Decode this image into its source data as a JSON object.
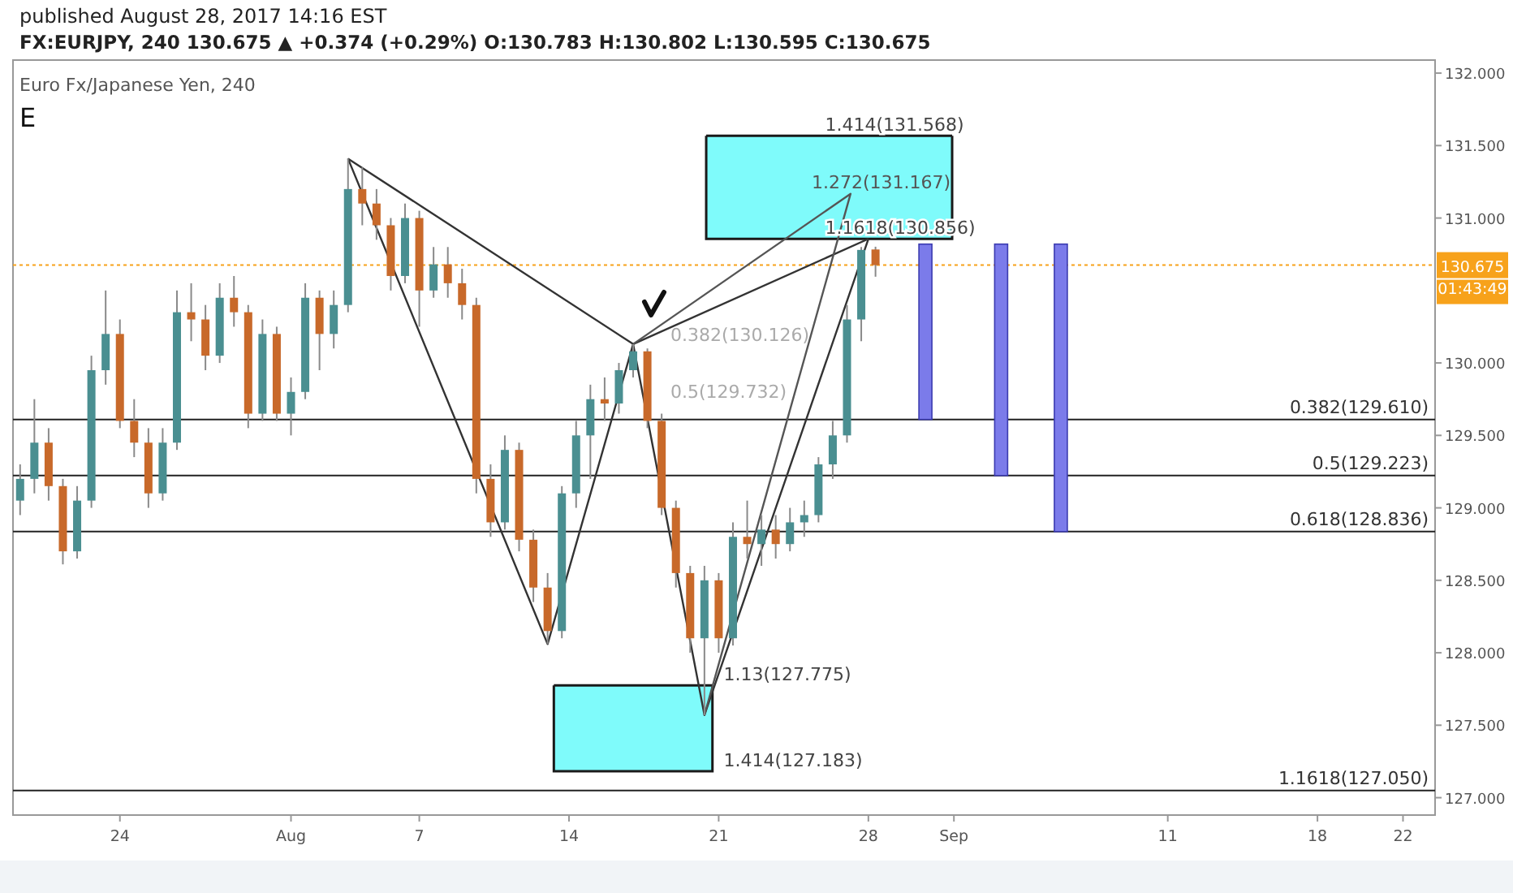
{
  "chart_data": {
    "type": "candlestick",
    "title": "FX:EURJPY, 240 130.675 ▲ +0.374 (+0.29%) O:130.783 H:130.802 L:130.595 C:130.675",
    "subtitle": "Euro Fx/Japanese Yen, 240",
    "annotations": [
      "published August 28, 2017 14:16 EST",
      "E",
      "01:43:49",
      "0.382(130.126)",
      "0.5(129.732)",
      "1.272(131.167)",
      {
        "text": "1.13(127.775)",
        "x": "2017-08-21T00:00",
        "y": 127.775
      },
      {
        "text": "1.414(127.183)",
        "x": "2017-08-21T00:00",
        "y": 127.183
      },
      {
        "text": "1.414(131.568)",
        "x": "2017-08-25T18:00",
        "y": 131.568
      },
      {
        "text": "1.1618(130.856)",
        "x": "2017-08-25T18:00",
        "y": 130.856
      }
    ],
    "x": [
      "2017-07-19T08:00",
      "2017-07-20T00:00",
      "2017-07-20T16:00",
      "2017-07-21T08:00",
      "2017-07-22T00:00",
      "2017-07-22T16:00",
      "2017-07-23T08:00",
      "2017-07-24T00:00",
      "2017-07-24T16:00",
      "2017-07-25T08:00",
      "2017-07-26T00:00",
      "2017-07-26T16:00",
      "2017-07-27T08:00",
      "2017-07-28T00:00",
      "2017-07-28T16:00",
      "2017-07-29T08:00",
      "2017-07-30T00:00",
      "2017-07-30T16:00",
      "2017-07-31T08:00",
      "2017-08-01T00:00",
      "2017-08-01T16:00",
      "2017-08-02T08:00",
      "2017-08-03T00:00",
      "2017-08-03T16:00",
      "2017-08-04T08:00",
      "2017-08-05T00:00",
      "2017-08-05T16:00",
      "2017-08-06T08:00",
      "2017-08-07T00:00",
      "2017-08-07T16:00",
      "2017-08-08T08:00",
      "2017-08-09T00:00",
      "2017-08-09T16:00",
      "2017-08-10T08:00",
      "2017-08-11T00:00",
      "2017-08-11T16:00",
      "2017-08-12T08:00",
      "2017-08-13T00:00",
      "2017-08-13T16:00",
      "2017-08-14T08:00",
      "2017-08-15T00:00",
      "2017-08-15T16:00",
      "2017-08-16T08:00",
      "2017-08-17T00:00",
      "2017-08-17T16:00",
      "2017-08-18T08:00",
      "2017-08-19T00:00",
      "2017-08-19T16:00",
      "2017-08-20T08:00",
      "2017-08-21T00:00",
      "2017-08-21T16:00",
      "2017-08-22T08:00",
      "2017-08-23T00:00",
      "2017-08-23T16:00",
      "2017-08-24T08:00",
      "2017-08-25T00:00",
      "2017-08-25T16:00",
      "2017-08-26T08:00",
      "2017-08-27T00:00",
      "2017-08-27T16:00",
      "2017-08-28T08:00"
    ],
    "ohlc": [
      [
        129.05,
        129.3,
        128.95,
        129.2
      ],
      [
        129.2,
        129.75,
        129.1,
        129.45
      ],
      [
        129.45,
        129.55,
        129.05,
        129.15
      ],
      [
        129.15,
        129.2,
        128.61,
        128.7
      ],
      [
        128.7,
        129.15,
        128.65,
        129.05
      ],
      [
        129.05,
        130.05,
        129.0,
        129.95
      ],
      [
        129.95,
        130.5,
        129.85,
        130.2
      ],
      [
        130.2,
        130.3,
        129.55,
        129.6
      ],
      [
        129.6,
        129.75,
        129.35,
        129.45
      ],
      [
        129.45,
        129.55,
        129.0,
        129.1
      ],
      [
        129.1,
        129.55,
        129.05,
        129.45
      ],
      [
        129.45,
        130.5,
        129.4,
        130.35
      ],
      [
        130.35,
        130.55,
        130.15,
        130.3
      ],
      [
        130.3,
        130.4,
        129.95,
        130.05
      ],
      [
        130.05,
        130.55,
        130.0,
        130.45
      ],
      [
        130.45,
        130.6,
        130.25,
        130.35
      ],
      [
        130.35,
        130.4,
        129.55,
        129.65
      ],
      [
        129.65,
        130.3,
        129.6,
        130.2
      ],
      [
        130.2,
        130.25,
        129.6,
        129.65
      ],
      [
        129.65,
        129.9,
        129.5,
        129.8
      ],
      [
        129.8,
        130.55,
        129.75,
        130.45
      ],
      [
        130.45,
        130.5,
        129.95,
        130.2
      ],
      [
        130.2,
        130.5,
        130.1,
        130.4
      ],
      [
        130.4,
        131.41,
        130.35,
        131.2
      ],
      [
        131.2,
        131.35,
        130.95,
        131.1
      ],
      [
        131.1,
        131.2,
        130.85,
        130.95
      ],
      [
        130.95,
        131.0,
        130.5,
        130.6
      ],
      [
        130.6,
        131.1,
        130.55,
        131.0
      ],
      [
        131.0,
        131.05,
        130.25,
        130.5
      ],
      [
        130.5,
        130.8,
        130.45,
        130.68
      ],
      [
        130.68,
        130.8,
        130.45,
        130.55
      ],
      [
        130.55,
        130.65,
        130.3,
        130.4
      ],
      [
        130.4,
        130.45,
        129.1,
        129.2
      ],
      [
        129.2,
        129.3,
        128.8,
        128.9
      ],
      [
        128.9,
        129.5,
        128.85,
        129.4
      ],
      [
        129.4,
        129.45,
        128.7,
        128.78
      ],
      [
        128.78,
        128.85,
        128.35,
        128.45
      ],
      [
        128.45,
        128.55,
        128.06,
        128.15
      ],
      [
        128.15,
        129.15,
        128.1,
        129.1
      ],
      [
        129.1,
        129.6,
        129.0,
        129.5
      ],
      [
        129.5,
        129.85,
        129.2,
        129.75
      ],
      [
        129.75,
        129.9,
        129.6,
        129.72
      ],
      [
        129.72,
        130.0,
        129.65,
        129.95
      ],
      [
        129.95,
        130.13,
        129.9,
        130.08
      ],
      [
        130.08,
        130.1,
        129.55,
        129.6
      ],
      [
        129.6,
        129.65,
        128.95,
        129.0
      ],
      [
        129.0,
        129.05,
        128.45,
        128.55
      ],
      [
        128.55,
        128.6,
        128.0,
        128.1
      ],
      [
        128.1,
        128.6,
        127.57,
        128.5
      ],
      [
        128.5,
        128.55,
        128.0,
        128.1
      ],
      [
        128.1,
        128.9,
        128.05,
        128.8
      ],
      [
        128.8,
        129.05,
        128.65,
        128.75
      ],
      [
        128.75,
        128.95,
        128.6,
        128.85
      ],
      [
        128.85,
        128.95,
        128.65,
        128.75
      ],
      [
        128.75,
        129.0,
        128.7,
        128.9
      ],
      [
        128.9,
        129.05,
        128.8,
        128.95
      ],
      [
        128.95,
        129.35,
        128.9,
        129.3
      ],
      [
        129.3,
        129.6,
        129.2,
        129.5
      ],
      [
        129.5,
        130.4,
        129.45,
        130.3
      ],
      [
        130.3,
        130.8,
        130.15,
        130.78
      ],
      [
        130.783,
        130.802,
        130.595,
        130.675
      ]
    ],
    "colors": [
      "#4a8f91",
      "#4a8f91",
      "#c8692a",
      "#c8692a",
      "#4a8f91",
      "#4a8f91",
      "#4a8f91",
      "#c8692a",
      "#c8692a",
      "#c8692a",
      "#4a8f91",
      "#4a8f91",
      "#c8692a",
      "#c8692a",
      "#4a8f91",
      "#c8692a",
      "#c8692a",
      "#4a8f91",
      "#c8692a",
      "#4a8f91",
      "#4a8f91",
      "#c8692a",
      "#4a8f91",
      "#4a8f91",
      "#c8692a",
      "#c8692a",
      "#c8692a",
      "#4a8f91",
      "#c8692a",
      "#4a8f91",
      "#c8692a",
      "#c8692a",
      "#c8692a",
      "#c8692a",
      "#4a8f91",
      "#c8692a",
      "#c8692a",
      "#c8692a",
      "#4a8f91",
      "#4a8f91",
      "#4a8f91",
      "#c8692a",
      "#4a8f91",
      "#4a8f91",
      "#c8692a",
      "#c8692a",
      "#c8692a",
      "#c8692a",
      "#4a8f91",
      "#c8692a",
      "#4a8f91",
      "#c8692a",
      "#4a8f91",
      "#c8692a",
      "#4a8f91",
      "#4a8f91",
      "#4a8f91",
      "#4a8f91",
      "#4a8f91",
      "#4a8f91",
      "#c8692a"
    ],
    "series": [
      {
        "type": "line",
        "color": "#1a1a1a",
        "x": [
          "2017-08-13T07:00",
          "2017-08-20T17:00"
        ],
        "lower": [
          127.183,
          127.183
        ],
        "upper": [
          127.775,
          127.775
        ],
        "values": [
          127.775,
          127.775
        ]
      },
      {
        "type": "line",
        "color": "#1a1a1a",
        "x": [
          "2017-08-20T10:00",
          "2017-08-31T22:00"
        ],
        "lower": [
          130.856,
          130.856
        ],
        "upper": [
          131.568,
          131.568
        ],
        "values": [
          131.568,
          131.568
        ]
      },
      {
        "type": "line",
        "color": "#333333",
        "x": [
          "2017-08-03T16:00",
          "2017-08-13T00:00",
          "2017-08-17T00:00",
          "2017-08-20T08:00",
          "2017-08-28T00:00"
        ],
        "values": [
          131.41,
          128.06,
          130.13,
          127.57,
          130.856
        ]
      },
      {
        "type": "line",
        "color": "#333333",
        "x": [
          "2017-08-03T16:00",
          "2017-08-17T00:00",
          "2017-08-28T00:00"
        ],
        "values": [
          131.41,
          130.13,
          130.856
        ]
      },
      {
        "type": "line",
        "color": "#555555",
        "x": [
          "2017-08-17T00:00",
          "2017-08-27T04:00",
          "2017-08-20T08:00"
        ],
        "values": [
          130.13,
          131.167,
          127.57
        ]
      },
      {
        "type": "bar",
        "color": "#7b7bea",
        "x": [
          "2017-08-30T16:00",
          "2017-09-03T05:00",
          "2017-09-06T00:00"
        ],
        "base": [
          129.61,
          129.223,
          128.836
        ],
        "values": [
          1.21,
          1.597,
          1.984
        ]
      }
    ],
    "ref_lines": [
      {
        "axis": "y",
        "value": 130.675,
        "label": "130.675",
        "color": "#f7a21b",
        "line_style": "dotted"
      },
      {
        "axis": "y",
        "value": 129.61,
        "label": "0.382(129.610)",
        "color": "#222222",
        "line_style": "solid"
      },
      {
        "axis": "y",
        "value": 129.223,
        "label": "0.5(129.223)",
        "color": "#222222",
        "line_style": "solid"
      },
      {
        "axis": "y",
        "value": 128.836,
        "label": "0.618(128.836)",
        "color": "#222222",
        "line_style": "solid"
      },
      {
        "axis": "y",
        "value": 127.05,
        "label": "1.1618(127.050)",
        "color": "#222222",
        "line_style": "solid"
      }
    ],
    "xlim": [
      "2017-07-19T00:00",
      "2017-09-23T12:00"
    ],
    "xticks": [
      {
        "value": "2017-07-24",
        "label": "24"
      },
      {
        "value": "2017-08-01",
        "label": "Aug"
      },
      {
        "value": "2017-08-07",
        "label": "7"
      },
      {
        "value": "2017-08-14",
        "label": "14"
      },
      {
        "value": "2017-08-21",
        "label": "21"
      },
      {
        "value": "2017-08-28",
        "label": "28"
      },
      {
        "value": "2017-09-01",
        "label": "Sep"
      },
      {
        "value": "2017-09-11",
        "label": "11"
      },
      {
        "value": "2017-09-18",
        "label": "18"
      },
      {
        "value": "2017-09-22",
        "label": "22"
      }
    ],
    "ylim": [
      126.88,
      132.09
    ],
    "yticks": [
      {
        "value": 127,
        "label": "127.000"
      },
      {
        "value": 127.5,
        "label": "127.500"
      },
      {
        "value": 128,
        "label": "128.000"
      },
      {
        "value": 128.5,
        "label": "128.500"
      },
      {
        "value": 129,
        "label": "129.000"
      },
      {
        "value": 129.5,
        "label": "129.500"
      },
      {
        "value": 130,
        "label": "130.000"
      },
      {
        "value": 131,
        "label": "131.000"
      },
      {
        "value": 131.5,
        "label": "131.500"
      },
      {
        "value": 132,
        "label": "132.000"
      }
    ]
  }
}
